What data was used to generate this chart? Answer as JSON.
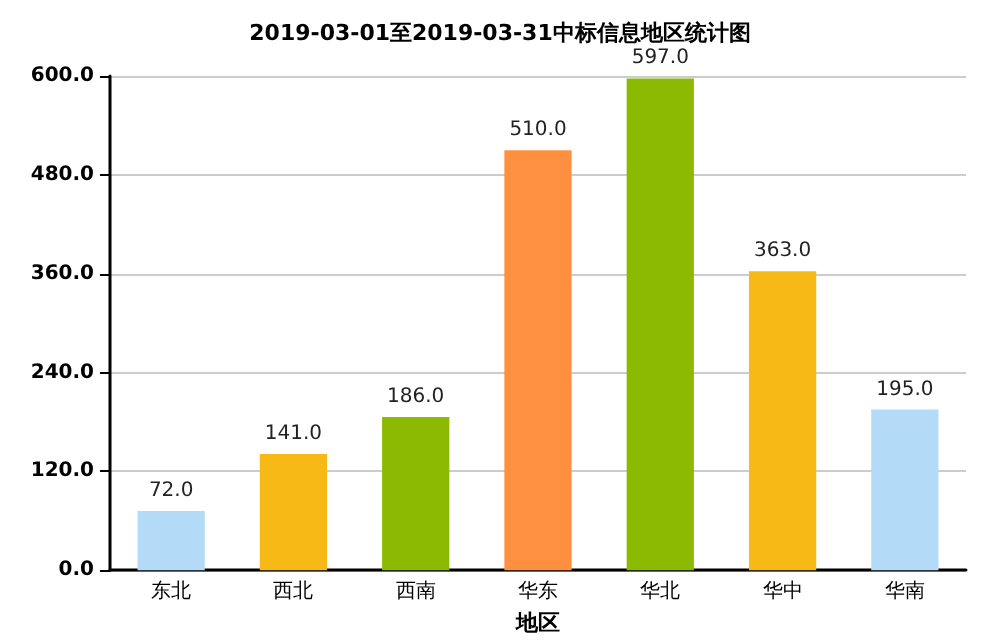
{
  "chart_data": {
    "type": "bar",
    "title": "2019-03-01至2019-03-31中标信息地区统计图",
    "xlabel": "地区",
    "categories": [
      "东北",
      "西北",
      "西南",
      "华东",
      "华北",
      "华中",
      "华南"
    ],
    "values": [
      72,
      141,
      186,
      510,
      597,
      363,
      195
    ],
    "colors": [
      "#b3dbf7",
      "#f6b915",
      "#8cba02",
      "#ff9040",
      "#8cba02",
      "#f6b915",
      "#b3dbf7"
    ],
    "value_labels": [
      "72.0",
      "141.0",
      "186.0",
      "510.0",
      "597.0",
      "363.0",
      "195.0"
    ],
    "ylim": [
      0,
      600
    ],
    "yticks": [
      {
        "value": 0,
        "label": "0.0"
      },
      {
        "value": 120,
        "label": "120.0"
      },
      {
        "value": 240,
        "label": "240.0"
      },
      {
        "value": 360,
        "label": "360.0"
      },
      {
        "value": 480,
        "label": "480.0"
      },
      {
        "value": 600,
        "label": "600.0"
      }
    ],
    "grid": "y"
  }
}
